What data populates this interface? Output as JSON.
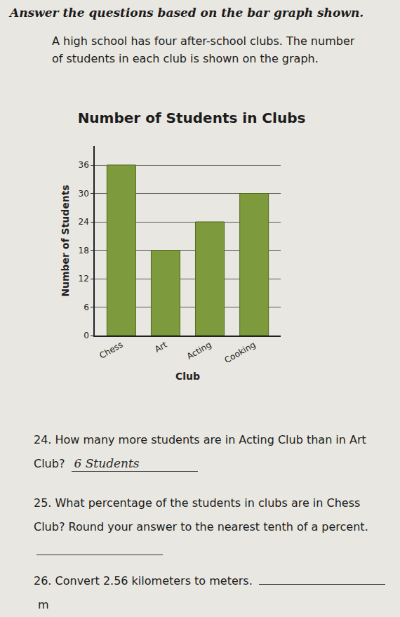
{
  "instructions": "Answer the questions based on the bar graph shown.",
  "intro": "A high school has four after-school clubs. The number of students in each club is shown on the graph.",
  "chart_data": {
    "type": "bar",
    "title": "Number of Students in Clubs",
    "x_label": "Club",
    "y_label": "Number of Students",
    "categories": [
      "Chess",
      "Art",
      "Acting",
      "Cooking"
    ],
    "values": [
      36,
      18,
      24,
      30
    ],
    "color": "#7d9a3c",
    "ylim": [
      0,
      40
    ],
    "yticks": [
      0,
      6,
      12,
      18,
      24,
      30,
      36
    ],
    "grid": true
  },
  "questions": [
    {
      "number": "24.",
      "text": "How many more students are in Acting Club than in Art Club?",
      "answer": "6 Students"
    },
    {
      "number": "25.",
      "text": "What percentage of the students in clubs are in Chess Club? Round your answer to the nearest tenth of a percent."
    },
    {
      "number": "26.",
      "text": "Convert 2.56 kilometers to meters.",
      "unit": "m"
    }
  ]
}
